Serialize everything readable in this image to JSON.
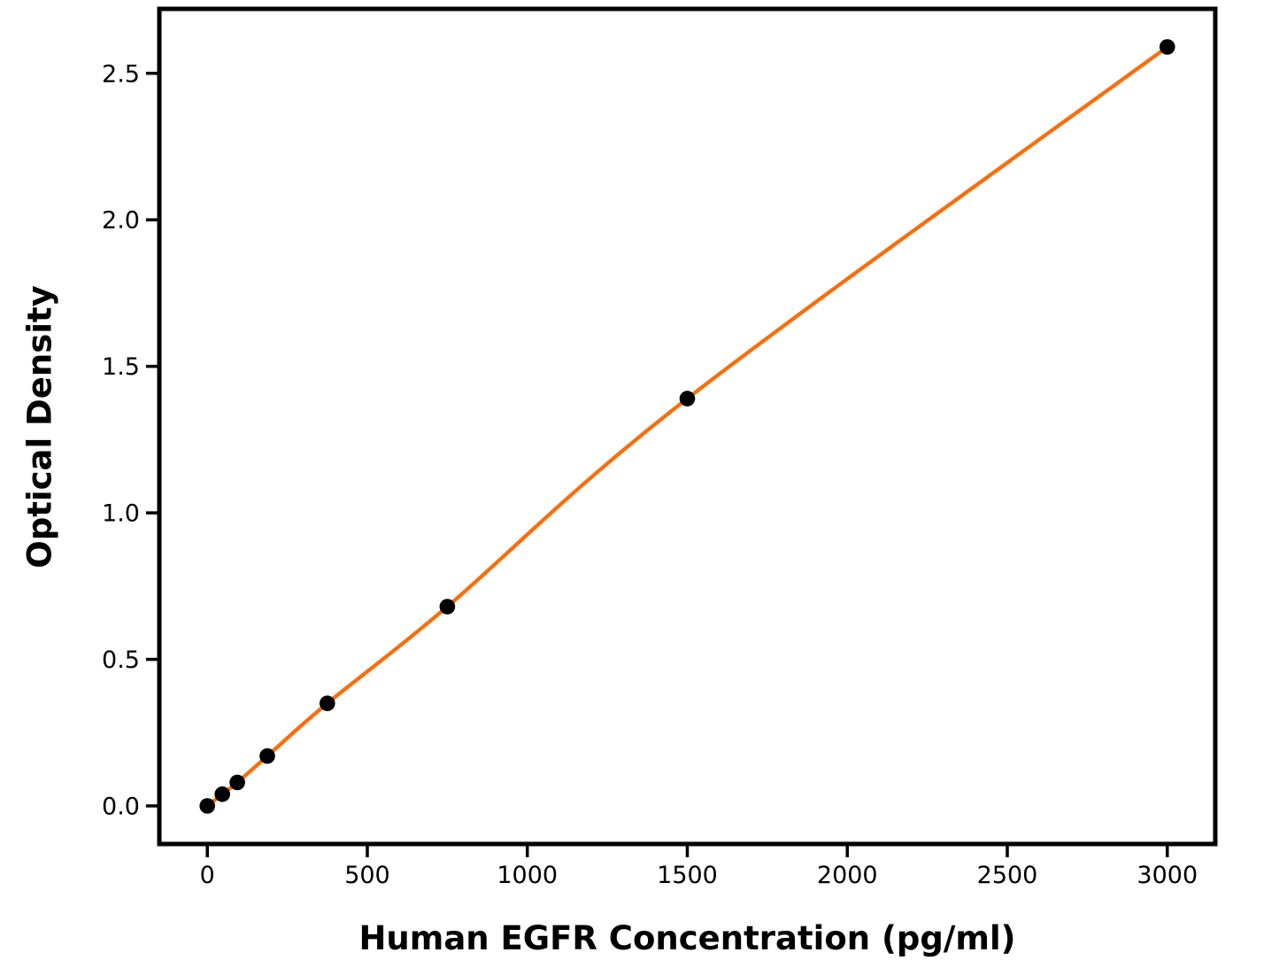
{
  "chart_data": {
    "type": "line",
    "title": "",
    "xlabel": "Human EGFR Concentration (pg/ml)",
    "ylabel": "Optical Density",
    "grid": false,
    "legend_position": "none",
    "background_color": "#ffffff",
    "axis_color": "#000000",
    "xlim": [
      -150,
      3150
    ],
    "ylim": [
      -0.13,
      2.72
    ],
    "x_ticks": [
      {
        "value": 0,
        "label": "0"
      },
      {
        "value": 500,
        "label": "500"
      },
      {
        "value": 1000,
        "label": "1000"
      },
      {
        "value": 1500,
        "label": "1500"
      },
      {
        "value": 2000,
        "label": "2000"
      },
      {
        "value": 2500,
        "label": "2500"
      },
      {
        "value": 3000,
        "label": "3000"
      }
    ],
    "y_ticks": [
      {
        "value": 0.0,
        "label": "0.0"
      },
      {
        "value": 0.5,
        "label": "0.5"
      },
      {
        "value": 1.0,
        "label": "1.0"
      },
      {
        "value": 1.5,
        "label": "1.5"
      },
      {
        "value": 2.0,
        "label": "2.0"
      },
      {
        "value": 2.5,
        "label": "2.5"
      }
    ],
    "series": [
      {
        "name": "standard-curve",
        "line_color": "#F96E0B",
        "marker_color": "#000000",
        "x": [
          0,
          46.9,
          93.8,
          187.5,
          375,
          750,
          1500,
          3000
        ],
        "y": [
          0.0,
          0.04,
          0.08,
          0.17,
          0.35,
          0.68,
          1.39,
          2.59
        ]
      }
    ]
  }
}
